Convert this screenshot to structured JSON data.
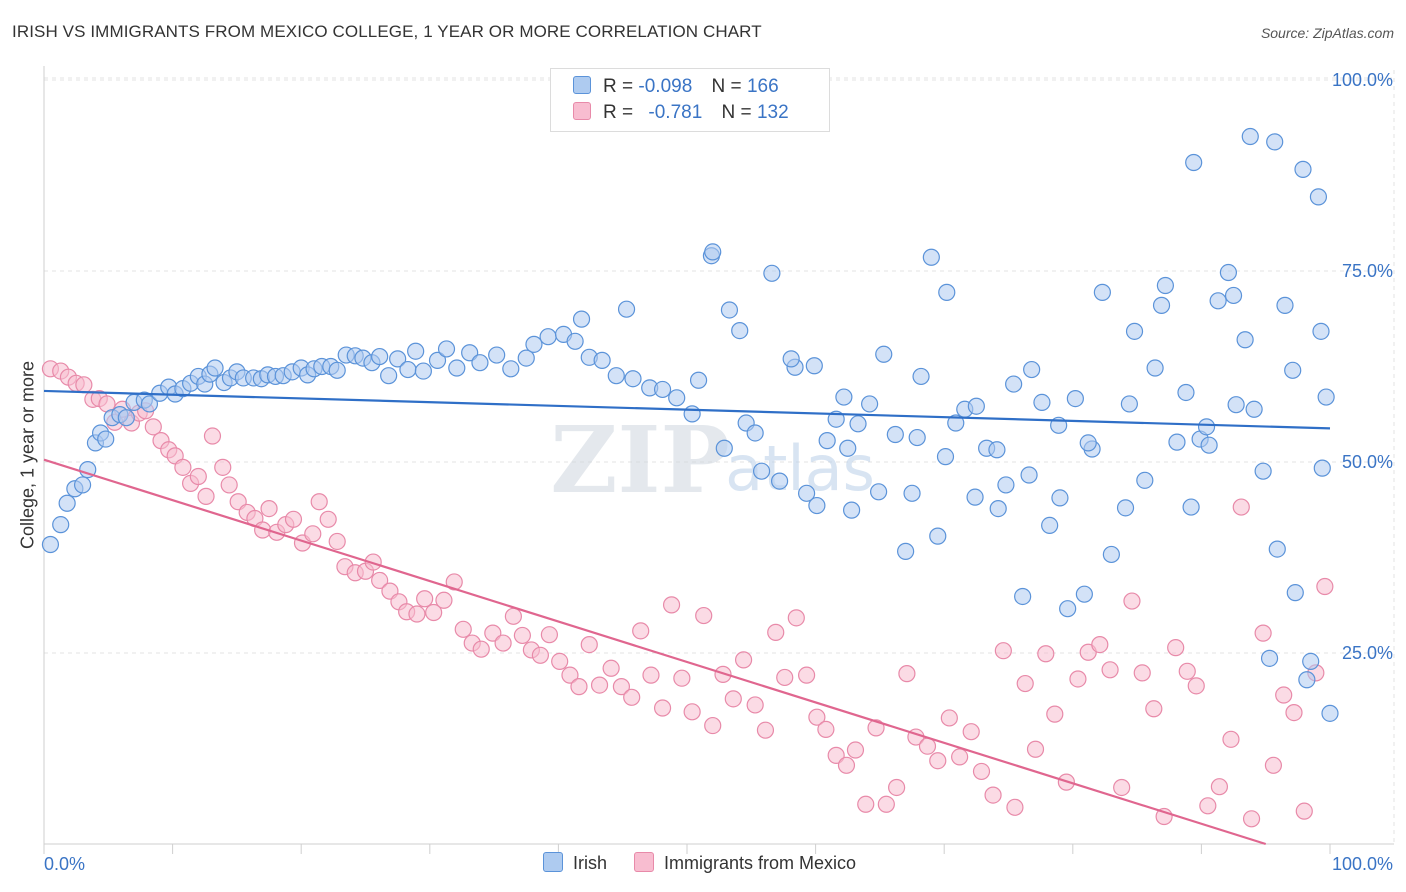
{
  "title": "IRISH VS IMMIGRANTS FROM MEXICO COLLEGE, 1 YEAR OR MORE CORRELATION CHART",
  "source": "Source: ZipAtlas.com",
  "watermark": {
    "zip": "ZIP",
    "atlas": "atlas"
  },
  "legend": {
    "irish": {
      "r_label": "R =",
      "r_value": "-0.098",
      "n_label": "N =",
      "n_value": "166"
    },
    "mexico": {
      "r_label": "R =",
      "r_value": "-0.781",
      "n_label": "N =",
      "n_value": "132"
    }
  },
  "colors": {
    "irish_fill": "#aecbf0",
    "irish_stroke": "#5b93d9",
    "irish_line": "#2f6fc7",
    "mexico_fill": "#f8bdd0",
    "mexico_stroke": "#e88aa9",
    "mexico_line": "#e0668f",
    "axis_text": "#3a74c5",
    "grid": "#e3e3e3"
  },
  "chart_data": {
    "type": "scatter",
    "title": "IRISH VS IMMIGRANTS FROM MEXICO COLLEGE, 1 YEAR OR MORE CORRELATION CHART",
    "xlabel": "",
    "ylabel": "College, 1 year or more",
    "xlim": [
      0,
      100
    ],
    "ylim": [
      0,
      102
    ],
    "x_tick_labels": [
      "0.0%",
      "100.0%"
    ],
    "y_tick_labels": [
      "25.0%",
      "50.0%",
      "75.0%",
      "100.0%"
    ],
    "y_ticks": [
      25,
      50,
      75,
      100
    ],
    "grid": true,
    "series": [
      {
        "name": "Irish",
        "r": -0.098,
        "n": 166,
        "trend": {
          "x": [
            0,
            100
          ],
          "y": [
            59.3,
            54.4
          ]
        },
        "points": [
          [
            0.5,
            39.2
          ],
          [
            1.3,
            41.8
          ],
          [
            1.8,
            44.6
          ],
          [
            2.4,
            46.5
          ],
          [
            3,
            47
          ],
          [
            3.4,
            49
          ],
          [
            4,
            52.5
          ],
          [
            4.4,
            53.8
          ],
          [
            4.8,
            53
          ],
          [
            5.3,
            55.8
          ],
          [
            5.9,
            56.2
          ],
          [
            6.4,
            55.8
          ],
          [
            7,
            57.8
          ],
          [
            7.8,
            58.1
          ],
          [
            8.2,
            57.6
          ],
          [
            9,
            59
          ],
          [
            9.7,
            59.8
          ],
          [
            10.2,
            58.9
          ],
          [
            10.8,
            59.6
          ],
          [
            11.4,
            60.3
          ],
          [
            12,
            61.2
          ],
          [
            12.5,
            60.2
          ],
          [
            12.9,
            61.5
          ],
          [
            13.3,
            62.3
          ],
          [
            14,
            60.4
          ],
          [
            14.5,
            61
          ],
          [
            15,
            61.8
          ],
          [
            15.5,
            61
          ],
          [
            16.3,
            61
          ],
          [
            16.9,
            60.9
          ],
          [
            17.4,
            61.4
          ],
          [
            18,
            61.2
          ],
          [
            18.6,
            61.3
          ],
          [
            19.3,
            61.8
          ],
          [
            20,
            62.3
          ],
          [
            20.5,
            61.4
          ],
          [
            21,
            62.2
          ],
          [
            21.6,
            62.5
          ],
          [
            22.3,
            62.5
          ],
          [
            22.8,
            62
          ],
          [
            23.5,
            64
          ],
          [
            24.2,
            63.9
          ],
          [
            24.8,
            63.6
          ],
          [
            25.5,
            63
          ],
          [
            26.1,
            63.8
          ],
          [
            26.8,
            61.3
          ],
          [
            27.5,
            63.5
          ],
          [
            28.3,
            62.1
          ],
          [
            28.9,
            64.5
          ],
          [
            29.5,
            61.9
          ],
          [
            30.6,
            63.3
          ],
          [
            31.3,
            64.8
          ],
          [
            32.1,
            62.3
          ],
          [
            33.1,
            64.3
          ],
          [
            33.9,
            63
          ],
          [
            35.2,
            64
          ],
          [
            36.3,
            62.2
          ],
          [
            37.5,
            63.6
          ],
          [
            38.1,
            65.4
          ],
          [
            39.2,
            66.4
          ],
          [
            40.4,
            66.7
          ],
          [
            41.3,
            65.8
          ],
          [
            41.8,
            68.7
          ],
          [
            42.4,
            63.7
          ],
          [
            43.4,
            63.3
          ],
          [
            44.5,
            61.3
          ],
          [
            45.3,
            70
          ],
          [
            45.8,
            60.9
          ],
          [
            47.1,
            59.7
          ],
          [
            48.1,
            59.5
          ],
          [
            49.2,
            58.4
          ],
          [
            50.4,
            56.3
          ],
          [
            50.9,
            60.7
          ],
          [
            51.9,
            77
          ],
          [
            52.9,
            51.8
          ],
          [
            54.1,
            67.2
          ],
          [
            54.6,
            55.1
          ],
          [
            55.8,
            48.8
          ],
          [
            57.2,
            47.5
          ],
          [
            58.4,
            62.4
          ],
          [
            59.3,
            45.9
          ],
          [
            60.1,
            44.3
          ],
          [
            60.9,
            52.8
          ],
          [
            61.6,
            55.6
          ],
          [
            62.2,
            58.5
          ],
          [
            62.8,
            43.7
          ],
          [
            63.3,
            55
          ],
          [
            64.2,
            57.6
          ],
          [
            65.3,
            64.1
          ],
          [
            66.2,
            53.6
          ],
          [
            67,
            38.3
          ],
          [
            67.5,
            45.9
          ],
          [
            68.2,
            61.2
          ],
          [
            69,
            76.8
          ],
          [
            69.5,
            40.3
          ],
          [
            70.1,
            50.7
          ],
          [
            70.9,
            55.1
          ],
          [
            71.6,
            56.9
          ],
          [
            72.5,
            57.3
          ],
          [
            73.3,
            51.8
          ],
          [
            74.1,
            51.6
          ],
          [
            74.8,
            47
          ],
          [
            75.4,
            60.2
          ],
          [
            76.1,
            32.4
          ],
          [
            76.8,
            62.1
          ],
          [
            77.6,
            57.8
          ],
          [
            78.2,
            41.7
          ],
          [
            79,
            45.3
          ],
          [
            79.6,
            30.8
          ],
          [
            80.2,
            58.3
          ],
          [
            80.9,
            32.7
          ],
          [
            81.5,
            51.7
          ],
          [
            82.3,
            72.2
          ],
          [
            83,
            37.9
          ],
          [
            84.1,
            44
          ],
          [
            84.8,
            67.1
          ],
          [
            85.6,
            47.6
          ],
          [
            86.4,
            62.3
          ],
          [
            87.2,
            73.1
          ],
          [
            88.1,
            52.6
          ],
          [
            88.8,
            59.1
          ],
          [
            89.4,
            89.2
          ],
          [
            89.9,
            53
          ],
          [
            90.4,
            54.6
          ],
          [
            91.3,
            71.1
          ],
          [
            92.1,
            74.8
          ],
          [
            92.7,
            57.5
          ],
          [
            93.4,
            66
          ],
          [
            94.1,
            56.9
          ],
          [
            95.3,
            24.3
          ],
          [
            95.9,
            38.6
          ],
          [
            96.5,
            70.5
          ],
          [
            97.3,
            32.9
          ],
          [
            97.9,
            88.3
          ],
          [
            98.5,
            23.9
          ],
          [
            99.1,
            84.7
          ],
          [
            99.4,
            49.2
          ],
          [
            99.7,
            58.5
          ],
          [
            100,
            17.1
          ],
          [
            52,
            77.5
          ],
          [
            53.3,
            69.9
          ],
          [
            55.3,
            53.8
          ],
          [
            56.6,
            74.7
          ],
          [
            58.1,
            63.5
          ],
          [
            59.9,
            62.6
          ],
          [
            62.5,
            51.8
          ],
          [
            64.9,
            46.1
          ],
          [
            67.9,
            53.2
          ],
          [
            70.2,
            72.2
          ],
          [
            72.4,
            45.4
          ],
          [
            74.2,
            43.9
          ],
          [
            76.6,
            48.3
          ],
          [
            78.9,
            54.8
          ],
          [
            81.2,
            52.5
          ],
          [
            84.4,
            57.6
          ],
          [
            86.9,
            70.5
          ],
          [
            89.2,
            44.1
          ],
          [
            90.6,
            52.2
          ],
          [
            92.5,
            71.8
          ],
          [
            94.8,
            48.8
          ],
          [
            97.1,
            62
          ],
          [
            98.2,
            21.5
          ],
          [
            99.3,
            67.1
          ],
          [
            93.8,
            92.6
          ],
          [
            95.7,
            91.9
          ]
        ]
      },
      {
        "name": "Immigrants from Mexico",
        "r": -0.781,
        "n": 132,
        "trend": {
          "x": [
            0,
            95
          ],
          "y": [
            50.3,
            0
          ]
        },
        "points": [
          [
            0.5,
            62.2
          ],
          [
            1.3,
            61.9
          ],
          [
            1.9,
            61.1
          ],
          [
            2.5,
            60.3
          ],
          [
            3.1,
            60.1
          ],
          [
            3.8,
            58.2
          ],
          [
            4.3,
            58.3
          ],
          [
            4.9,
            57.6
          ],
          [
            5.5,
            55.2
          ],
          [
            6.1,
            56.9
          ],
          [
            6.8,
            55.1
          ],
          [
            7.4,
            56.4
          ],
          [
            7.9,
            56.7
          ],
          [
            8.5,
            54.6
          ],
          [
            9.1,
            52.8
          ],
          [
            9.7,
            51.6
          ],
          [
            10.2,
            50.8
          ],
          [
            10.8,
            49.3
          ],
          [
            11.4,
            47.2
          ],
          [
            12,
            48.1
          ],
          [
            12.6,
            45.5
          ],
          [
            13.1,
            53.4
          ],
          [
            13.9,
            49.3
          ],
          [
            14.4,
            47
          ],
          [
            15.1,
            44.8
          ],
          [
            15.8,
            43.4
          ],
          [
            16.4,
            42.6
          ],
          [
            17,
            41.1
          ],
          [
            17.5,
            43.9
          ],
          [
            18.1,
            40.8
          ],
          [
            18.8,
            41.8
          ],
          [
            19.4,
            42.5
          ],
          [
            20.1,
            39.4
          ],
          [
            20.9,
            40.6
          ],
          [
            21.4,
            44.8
          ],
          [
            22.1,
            42.5
          ],
          [
            22.8,
            39.6
          ],
          [
            23.4,
            36.3
          ],
          [
            24.2,
            35.5
          ],
          [
            25,
            35.7
          ],
          [
            25.6,
            36.9
          ],
          [
            26.1,
            34.5
          ],
          [
            26.9,
            33.1
          ],
          [
            27.6,
            31.7
          ],
          [
            28.2,
            30.4
          ],
          [
            29,
            30.1
          ],
          [
            29.6,
            32.1
          ],
          [
            30.3,
            30.3
          ],
          [
            31.1,
            31.9
          ],
          [
            31.9,
            34.3
          ],
          [
            32.6,
            28.1
          ],
          [
            33.3,
            26.3
          ],
          [
            34,
            25.5
          ],
          [
            34.9,
            27.6
          ],
          [
            35.7,
            26.3
          ],
          [
            36.5,
            29.8
          ],
          [
            37.2,
            27.3
          ],
          [
            37.9,
            25.4
          ],
          [
            38.6,
            24.7
          ],
          [
            39.3,
            27.4
          ],
          [
            40.1,
            23.9
          ],
          [
            40.9,
            22.1
          ],
          [
            41.6,
            20.6
          ],
          [
            42.4,
            26.1
          ],
          [
            43.2,
            20.8
          ],
          [
            44.1,
            23
          ],
          [
            44.9,
            20.6
          ],
          [
            45.7,
            19.2
          ],
          [
            46.4,
            27.9
          ],
          [
            47.2,
            22.1
          ],
          [
            48.1,
            17.8
          ],
          [
            48.8,
            31.3
          ],
          [
            49.6,
            21.7
          ],
          [
            50.4,
            17.3
          ],
          [
            51.3,
            29.9
          ],
          [
            52,
            15.5
          ],
          [
            52.8,
            22.2
          ],
          [
            53.6,
            19
          ],
          [
            54.4,
            24.1
          ],
          [
            55.3,
            18.2
          ],
          [
            56.1,
            14.9
          ],
          [
            56.9,
            27.7
          ],
          [
            57.6,
            21.8
          ],
          [
            58.5,
            29.6
          ],
          [
            59.3,
            22.1
          ],
          [
            60.1,
            16.6
          ],
          [
            60.8,
            15
          ],
          [
            61.6,
            11.6
          ],
          [
            62.4,
            10.3
          ],
          [
            63.1,
            12.3
          ],
          [
            63.9,
            5.2
          ],
          [
            64.7,
            15.2
          ],
          [
            65.5,
            5.2
          ],
          [
            66.3,
            7.4
          ],
          [
            67.1,
            22.3
          ],
          [
            67.8,
            14
          ],
          [
            68.7,
            12.8
          ],
          [
            69.5,
            10.9
          ],
          [
            70.4,
            16.5
          ],
          [
            71.2,
            11.4
          ],
          [
            72.1,
            14.7
          ],
          [
            72.9,
            9.5
          ],
          [
            73.8,
            6.4
          ],
          [
            74.6,
            25.3
          ],
          [
            75.5,
            4.8
          ],
          [
            76.3,
            21
          ],
          [
            77.1,
            12.4
          ],
          [
            77.9,
            24.9
          ],
          [
            78.6,
            17
          ],
          [
            79.5,
            8.1
          ],
          [
            80.4,
            21.6
          ],
          [
            81.2,
            25.1
          ],
          [
            82.1,
            26.1
          ],
          [
            82.9,
            22.8
          ],
          [
            83.8,
            7.4
          ],
          [
            84.6,
            31.8
          ],
          [
            85.4,
            22.4
          ],
          [
            86.3,
            17.7
          ],
          [
            87.1,
            3.6
          ],
          [
            88,
            25.7
          ],
          [
            88.9,
            22.6
          ],
          [
            89.6,
            20.7
          ],
          [
            90.5,
            5
          ],
          [
            91.4,
            7.5
          ],
          [
            92.3,
            13.7
          ],
          [
            93.1,
            44.1
          ],
          [
            93.9,
            3.3
          ],
          [
            94.8,
            27.6
          ],
          [
            95.6,
            10.3
          ],
          [
            96.4,
            19.5
          ],
          [
            97.2,
            17.2
          ],
          [
            98,
            4.3
          ],
          [
            98.9,
            22.4
          ],
          [
            99.6,
            33.7
          ]
        ]
      }
    ]
  },
  "bottom_legend": {
    "irish": "Irish",
    "mexico": "Immigrants from Mexico"
  }
}
